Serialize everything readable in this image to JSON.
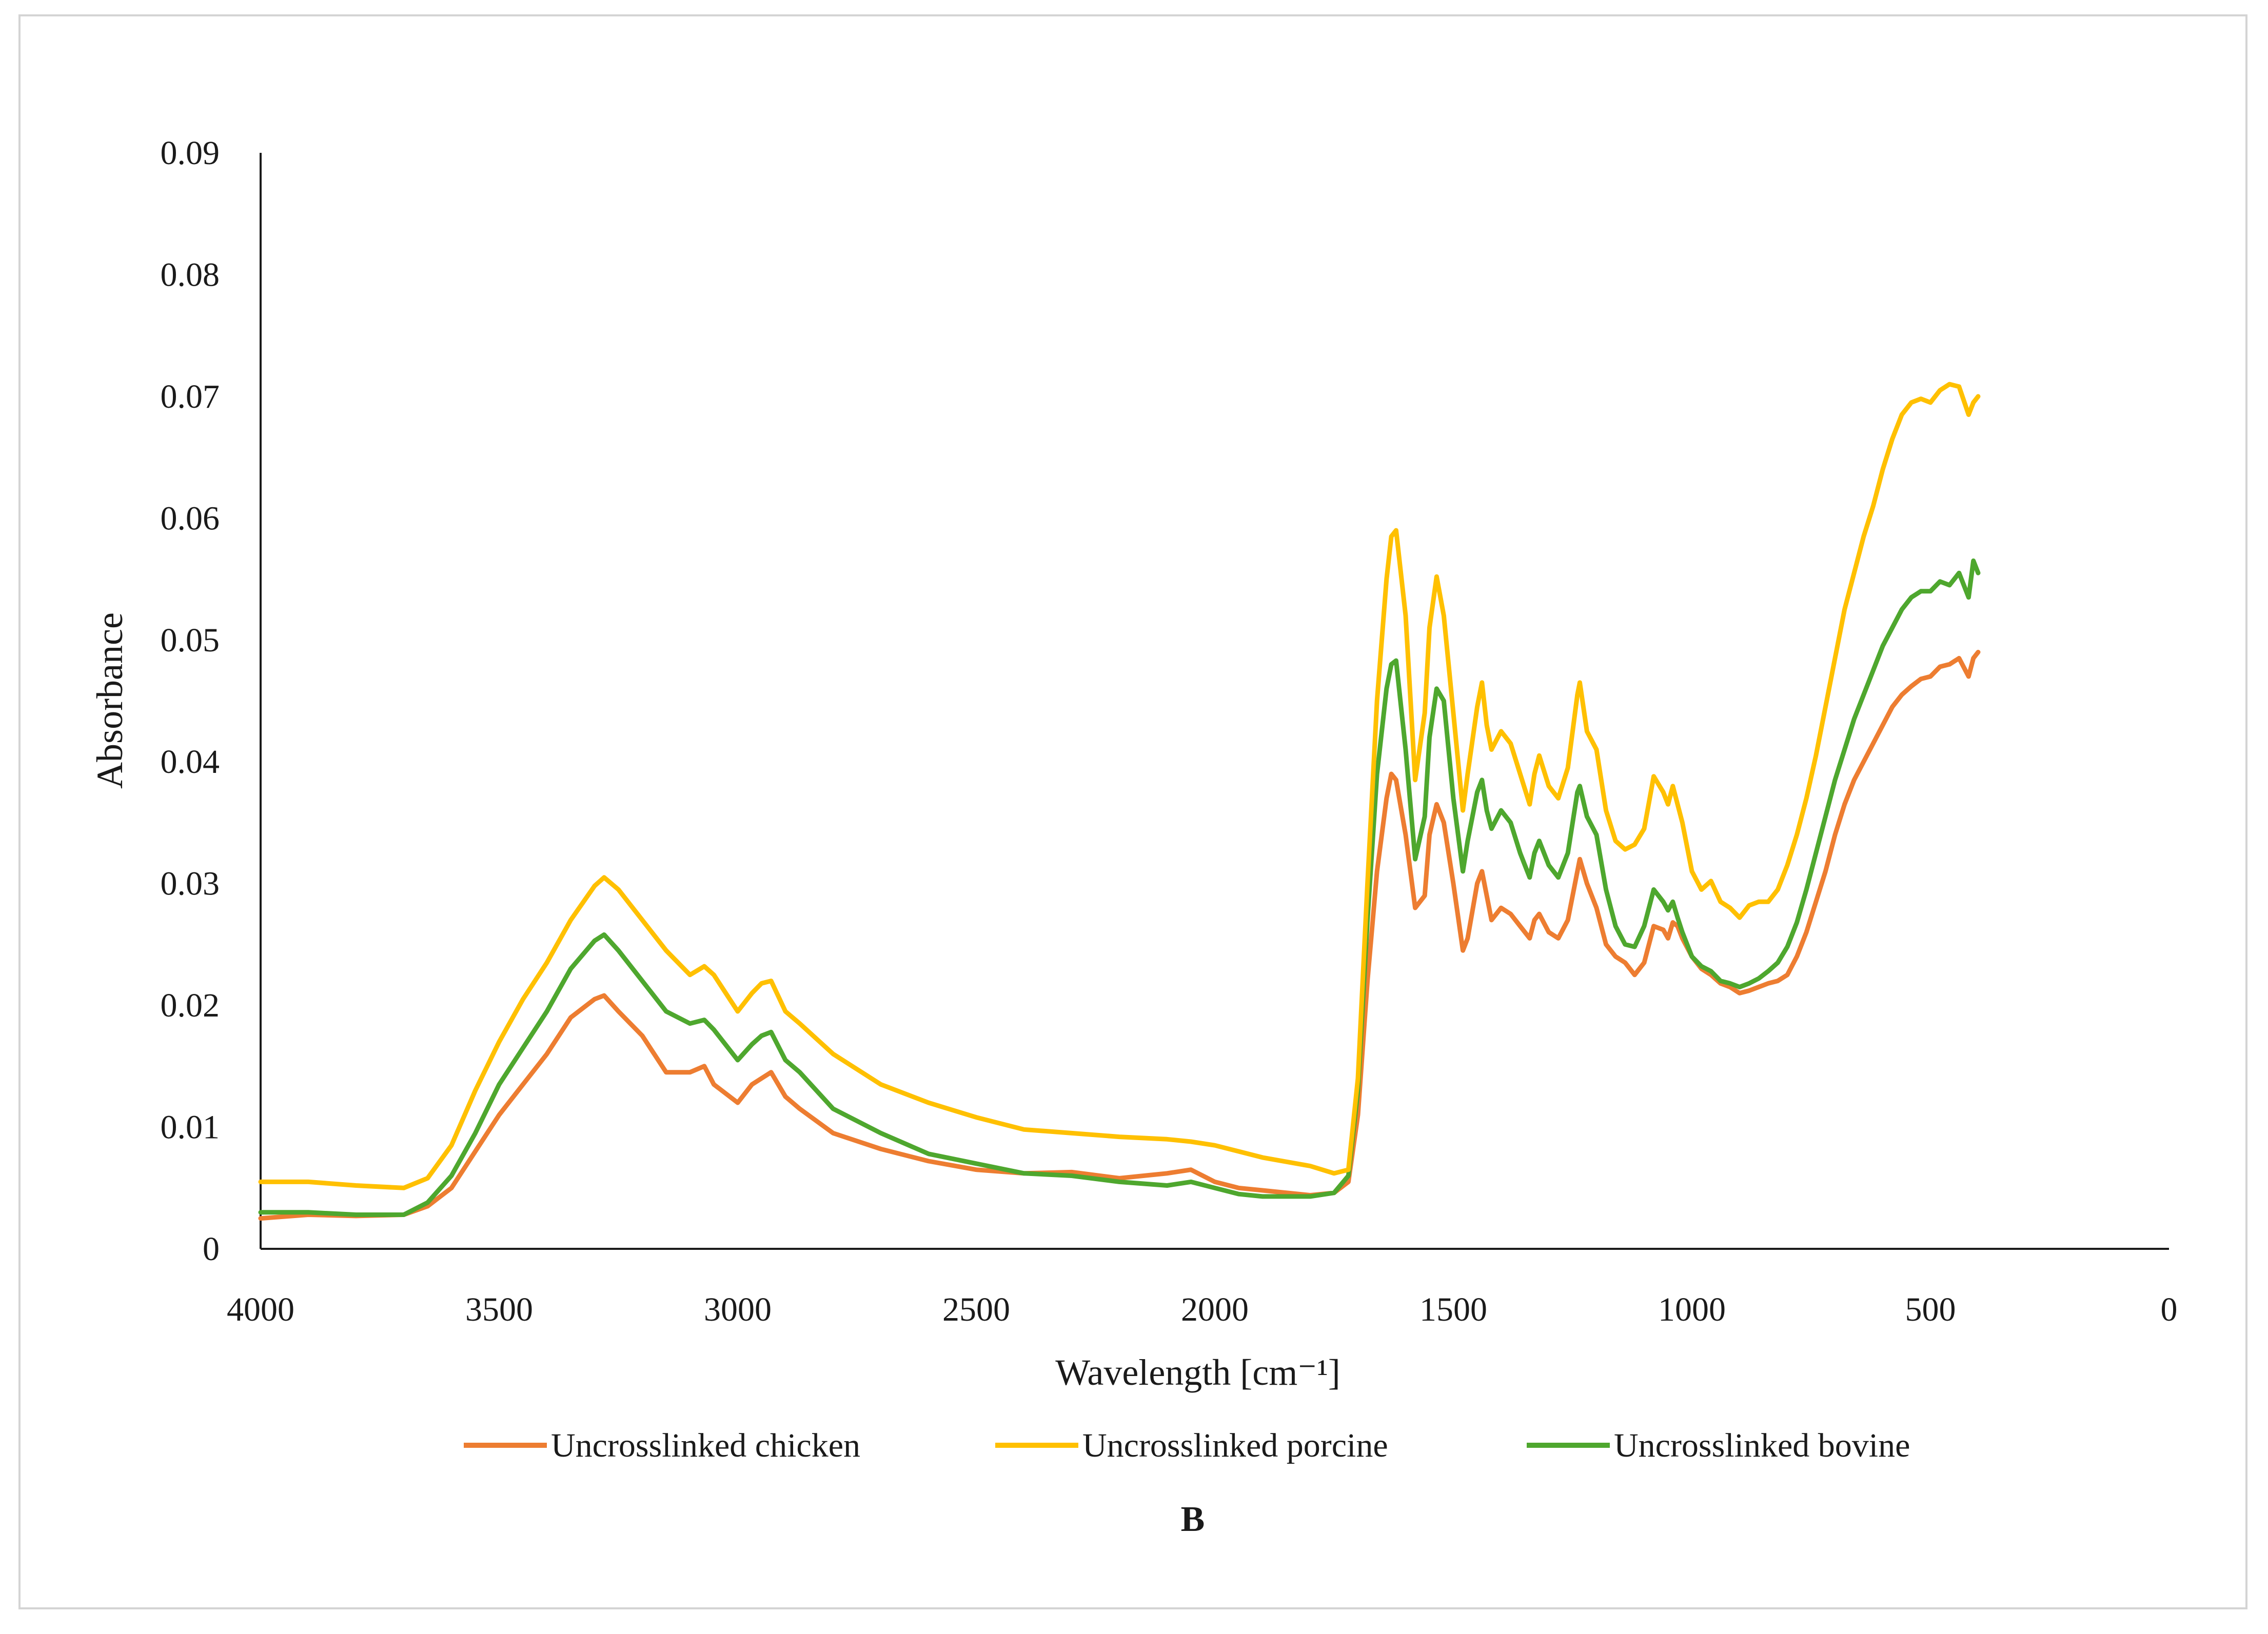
{
  "chart_data": {
    "type": "line",
    "title": "",
    "xlabel": "Wavelength [cm⁻¹]",
    "ylabel": "Absorbance",
    "panel_label": "B",
    "xlim": [
      4000,
      0
    ],
    "ylim": [
      0,
      0.09
    ],
    "x_reversed": true,
    "grid": false,
    "legend_position": "bottom",
    "x_ticks": [
      4000,
      3500,
      3000,
      2500,
      2000,
      1500,
      1000,
      500,
      0
    ],
    "x_tick_labels": [
      "4000",
      "3500",
      "3000",
      "2500",
      "2000",
      "1500",
      "1000",
      "500",
      "0"
    ],
    "y_ticks": [
      0,
      0.01,
      0.02,
      0.03,
      0.04,
      0.05,
      0.06,
      0.07,
      0.08,
      0.09
    ],
    "y_tick_labels": [
      "0",
      "0.01",
      "0.02",
      "0.03",
      "0.04",
      "0.05",
      "0.06",
      "0.07",
      "0.08",
      "0.09"
    ],
    "series": [
      {
        "name": "Uncrosslinked chicken",
        "color": "#ED7D31",
        "x": [
          4000,
          3900,
          3800,
          3700,
          3650,
          3600,
          3550,
          3500,
          3450,
          3400,
          3350,
          3300,
          3280,
          3250,
          3200,
          3150,
          3100,
          3070,
          3050,
          3000,
          2970,
          2950,
          2930,
          2900,
          2870,
          2800,
          2700,
          2600,
          2500,
          2400,
          2300,
          2200,
          2100,
          2050,
          2000,
          1950,
          1900,
          1800,
          1750,
          1720,
          1700,
          1680,
          1660,
          1640,
          1630,
          1620,
          1600,
          1580,
          1560,
          1550,
          1535,
          1520,
          1500,
          1480,
          1470,
          1450,
          1440,
          1430,
          1420,
          1400,
          1380,
          1360,
          1340,
          1330,
          1320,
          1300,
          1280,
          1260,
          1240,
          1235,
          1220,
          1200,
          1180,
          1160,
          1140,
          1120,
          1100,
          1080,
          1060,
          1050,
          1040,
          1030,
          1020,
          1000,
          980,
          960,
          940,
          920,
          900,
          880,
          860,
          840,
          820,
          800,
          780,
          760,
          740,
          720,
          700,
          680,
          660,
          640,
          620,
          600,
          580,
          560,
          540,
          520,
          500,
          480,
          460,
          440,
          420,
          410,
          400
        ],
        "y": [
          0.0025,
          0.0028,
          0.0027,
          0.0028,
          0.0035,
          0.005,
          0.008,
          0.011,
          0.0135,
          0.016,
          0.019,
          0.0205,
          0.0208,
          0.0195,
          0.0175,
          0.0145,
          0.0145,
          0.015,
          0.0135,
          0.012,
          0.0135,
          0.014,
          0.0145,
          0.0125,
          0.0115,
          0.0095,
          0.0082,
          0.0072,
          0.0065,
          0.0062,
          0.0063,
          0.0058,
          0.0062,
          0.0065,
          0.0055,
          0.005,
          0.0048,
          0.0044,
          0.0046,
          0.0055,
          0.011,
          0.022,
          0.031,
          0.037,
          0.039,
          0.0385,
          0.034,
          0.028,
          0.029,
          0.034,
          0.0365,
          0.035,
          0.03,
          0.0245,
          0.0255,
          0.03,
          0.031,
          0.029,
          0.027,
          0.028,
          0.0275,
          0.0265,
          0.0255,
          0.027,
          0.0275,
          0.026,
          0.0255,
          0.027,
          0.031,
          0.032,
          0.03,
          0.028,
          0.025,
          0.024,
          0.0235,
          0.0225,
          0.0235,
          0.0265,
          0.0262,
          0.0255,
          0.0268,
          0.0265,
          0.0255,
          0.024,
          0.023,
          0.0225,
          0.0218,
          0.0215,
          0.021,
          0.0212,
          0.0215,
          0.0218,
          0.022,
          0.0225,
          0.024,
          0.026,
          0.0285,
          0.031,
          0.034,
          0.0365,
          0.0385,
          0.04,
          0.0415,
          0.043,
          0.0445,
          0.0455,
          0.0462,
          0.0468,
          0.047,
          0.0478,
          0.048,
          0.0485,
          0.047,
          0.0485,
          0.049
        ]
      },
      {
        "name": "Uncrosslinked porcine",
        "color": "#FFC000",
        "x": [
          4000,
          3900,
          3800,
          3700,
          3650,
          3600,
          3550,
          3500,
          3450,
          3400,
          3350,
          3300,
          3280,
          3250,
          3200,
          3150,
          3100,
          3070,
          3050,
          3000,
          2970,
          2950,
          2930,
          2900,
          2870,
          2800,
          2700,
          2600,
          2500,
          2400,
          2300,
          2200,
          2100,
          2050,
          2000,
          1950,
          1900,
          1800,
          1750,
          1720,
          1700,
          1680,
          1660,
          1640,
          1630,
          1620,
          1600,
          1580,
          1560,
          1550,
          1535,
          1520,
          1500,
          1480,
          1470,
          1450,
          1440,
          1430,
          1420,
          1400,
          1380,
          1360,
          1340,
          1330,
          1320,
          1300,
          1280,
          1260,
          1240,
          1235,
          1220,
          1200,
          1180,
          1160,
          1140,
          1120,
          1100,
          1080,
          1060,
          1050,
          1040,
          1030,
          1020,
          1000,
          980,
          960,
          940,
          920,
          900,
          880,
          860,
          840,
          820,
          800,
          780,
          760,
          740,
          720,
          700,
          680,
          660,
          640,
          620,
          600,
          580,
          560,
          540,
          520,
          500,
          480,
          460,
          440,
          420,
          410,
          400
        ],
        "y": [
          0.0055,
          0.0055,
          0.0052,
          0.005,
          0.0058,
          0.0085,
          0.013,
          0.017,
          0.0205,
          0.0235,
          0.027,
          0.0298,
          0.0305,
          0.0295,
          0.027,
          0.0245,
          0.0225,
          0.0232,
          0.0225,
          0.0195,
          0.021,
          0.0218,
          0.022,
          0.0195,
          0.0185,
          0.016,
          0.0135,
          0.012,
          0.0108,
          0.0098,
          0.0095,
          0.0092,
          0.009,
          0.0088,
          0.0085,
          0.008,
          0.0075,
          0.0068,
          0.0062,
          0.0065,
          0.014,
          0.03,
          0.045,
          0.055,
          0.0585,
          0.059,
          0.052,
          0.0385,
          0.044,
          0.051,
          0.0552,
          0.052,
          0.044,
          0.036,
          0.039,
          0.0445,
          0.0465,
          0.043,
          0.041,
          0.0425,
          0.0415,
          0.039,
          0.0365,
          0.039,
          0.0405,
          0.038,
          0.037,
          0.0395,
          0.0455,
          0.0465,
          0.0425,
          0.041,
          0.036,
          0.0335,
          0.0328,
          0.0332,
          0.0345,
          0.0388,
          0.0375,
          0.0365,
          0.038,
          0.0365,
          0.035,
          0.031,
          0.0295,
          0.0302,
          0.0285,
          0.028,
          0.0272,
          0.0282,
          0.0285,
          0.0285,
          0.0295,
          0.0315,
          0.034,
          0.037,
          0.0405,
          0.0445,
          0.0485,
          0.0525,
          0.0555,
          0.0585,
          0.061,
          0.064,
          0.0665,
          0.0685,
          0.0695,
          0.0698,
          0.0695,
          0.0705,
          0.071,
          0.0708,
          0.0685,
          0.0695,
          0.07
        ]
      },
      {
        "name": "Uncrosslinked bovine",
        "color": "#4EA72E",
        "x": [
          4000,
          3900,
          3800,
          3700,
          3650,
          3600,
          3550,
          3500,
          3450,
          3400,
          3350,
          3300,
          3280,
          3250,
          3200,
          3150,
          3100,
          3070,
          3050,
          3000,
          2970,
          2950,
          2930,
          2900,
          2870,
          2800,
          2700,
          2600,
          2500,
          2400,
          2300,
          2200,
          2100,
          2050,
          2000,
          1950,
          1900,
          1800,
          1750,
          1720,
          1700,
          1680,
          1660,
          1640,
          1630,
          1620,
          1600,
          1580,
          1560,
          1550,
          1535,
          1520,
          1500,
          1480,
          1470,
          1450,
          1440,
          1430,
          1420,
          1400,
          1380,
          1360,
          1340,
          1330,
          1320,
          1300,
          1280,
          1260,
          1240,
          1235,
          1220,
          1200,
          1180,
          1160,
          1140,
          1120,
          1100,
          1080,
          1060,
          1050,
          1040,
          1030,
          1020,
          1000,
          980,
          960,
          940,
          920,
          900,
          880,
          860,
          840,
          820,
          800,
          780,
          760,
          740,
          720,
          700,
          680,
          660,
          640,
          620,
          600,
          580,
          560,
          540,
          520,
          500,
          480,
          460,
          440,
          420,
          410,
          400
        ],
        "y": [
          0.003,
          0.003,
          0.0028,
          0.0028,
          0.0038,
          0.006,
          0.0095,
          0.0135,
          0.0165,
          0.0195,
          0.023,
          0.0253,
          0.0258,
          0.0245,
          0.022,
          0.0195,
          0.0185,
          0.0188,
          0.018,
          0.0155,
          0.0168,
          0.0175,
          0.0178,
          0.0155,
          0.0145,
          0.0115,
          0.0095,
          0.0078,
          0.007,
          0.0062,
          0.006,
          0.0055,
          0.0052,
          0.0055,
          0.005,
          0.0045,
          0.0043,
          0.0043,
          0.0046,
          0.006,
          0.013,
          0.027,
          0.039,
          0.046,
          0.048,
          0.0483,
          0.041,
          0.032,
          0.0355,
          0.042,
          0.046,
          0.045,
          0.037,
          0.031,
          0.0335,
          0.0375,
          0.0385,
          0.036,
          0.0345,
          0.036,
          0.035,
          0.0325,
          0.0305,
          0.0325,
          0.0335,
          0.0315,
          0.0305,
          0.0325,
          0.0375,
          0.038,
          0.0355,
          0.034,
          0.0295,
          0.0265,
          0.025,
          0.0248,
          0.0265,
          0.0295,
          0.0285,
          0.0278,
          0.0285,
          0.0272,
          0.026,
          0.024,
          0.0232,
          0.0228,
          0.022,
          0.0218,
          0.0215,
          0.0218,
          0.0222,
          0.0228,
          0.0235,
          0.0248,
          0.0268,
          0.0295,
          0.0325,
          0.0355,
          0.0385,
          0.041,
          0.0435,
          0.0455,
          0.0475,
          0.0495,
          0.051,
          0.0525,
          0.0535,
          0.054,
          0.054,
          0.0548,
          0.0545,
          0.0555,
          0.0535,
          0.0565,
          0.0555
        ]
      }
    ]
  }
}
